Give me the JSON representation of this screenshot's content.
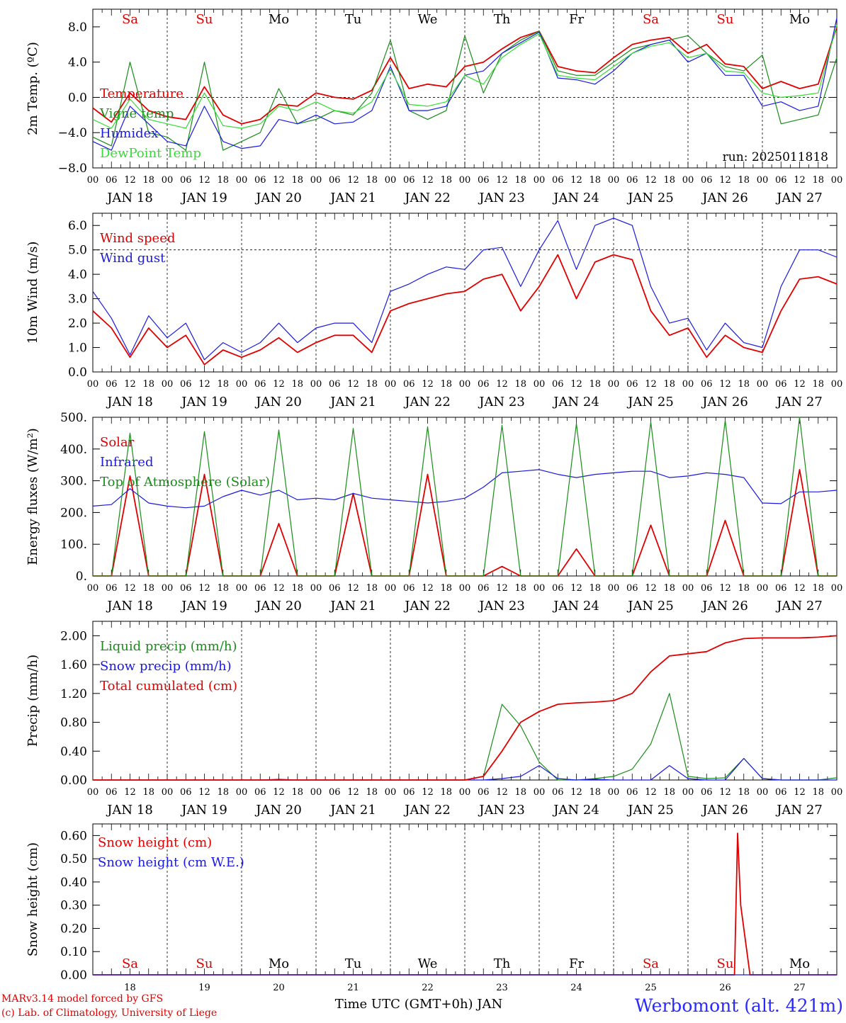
{
  "days": [
    "JAN 18",
    "JAN 19",
    "JAN 20",
    "JAN 21",
    "JAN 22",
    "JAN 23",
    "JAN 24",
    "JAN 25",
    "JAN 26",
    "JAN 27"
  ],
  "weekdays": [
    "Sa",
    "Su",
    "Mo",
    "Tu",
    "We",
    "Th",
    "Fr",
    "Sa",
    "Su",
    "Mo"
  ],
  "weekend_color": "#e00000",
  "weekday_color": "#000000",
  "hour_ticks": [
    "00",
    "06",
    "12",
    "18"
  ],
  "hour_end": "00",
  "bottom_day_numbers": [
    "18",
    "19",
    "20",
    "21",
    "22",
    "23",
    "24",
    "25",
    "26",
    "27"
  ],
  "xlabel": "Time UTC (GMT+0h) JAN",
  "footer": {
    "model": "MARv3.14 model forced by GFS",
    "copyright": "(c) Lab. of Climatology, University of Liege",
    "station": "Werbomont (alt. 421m)"
  },
  "chart_data": [
    {
      "type": "line",
      "ylabel": "2m Temp. (ºC)",
      "ylim": [
        -8,
        10
      ],
      "yticks": [
        -8,
        -4,
        0,
        4,
        8
      ],
      "ytick_labels": [
        "−8.0",
        "−4.0",
        "0.0",
        "4.0",
        "8.0"
      ],
      "ref_line": 0,
      "annotation": "run: 2025011818",
      "x_hours": [
        0,
        6,
        12,
        18,
        24,
        30,
        36,
        42,
        48,
        54,
        60,
        66,
        72,
        78,
        84,
        90,
        96,
        102,
        108,
        114,
        120,
        126,
        132,
        138,
        144,
        150,
        156,
        162,
        168,
        174,
        180,
        186,
        192,
        198,
        204,
        210,
        216,
        222,
        228,
        234,
        240
      ],
      "series": [
        {
          "name": "Temperature",
          "color": "#e00000",
          "values": [
            -1.2,
            -2.8,
            0.5,
            -1.5,
            -2.2,
            -2.5,
            1.2,
            -2.0,
            -3.0,
            -2.5,
            -0.8,
            -1.0,
            0.5,
            0.0,
            -0.2,
            0.8,
            4.5,
            1.0,
            1.5,
            1.2,
            3.5,
            4.0,
            5.5,
            6.8,
            7.5,
            3.5,
            3.0,
            2.8,
            4.5,
            6.0,
            6.5,
            6.8,
            5.0,
            6.0,
            3.8,
            3.5,
            1.0,
            1.8,
            1.0,
            1.5,
            8.0
          ]
        },
        {
          "name": "Vigne temp",
          "color": "#1a8c1a",
          "values": [
            -4.5,
            -5.5,
            4.0,
            -4.0,
            -4.5,
            -6.0,
            4.0,
            -6.0,
            -5.0,
            -4.0,
            1.0,
            -3.0,
            -2.5,
            -1.5,
            -2.0,
            0.5,
            6.5,
            -1.5,
            -2.5,
            -1.5,
            7.0,
            0.5,
            5.0,
            6.5,
            7.5,
            3.0,
            2.5,
            2.5,
            4.0,
            5.5,
            6.0,
            6.5,
            7.0,
            5.0,
            3.5,
            3.0,
            4.8,
            -3.0,
            -2.5,
            -2.0,
            4.5
          ]
        },
        {
          "name": "Humidex",
          "color": "#1a1ae0",
          "values": [
            -5.0,
            -6.0,
            -1.0,
            -3.0,
            -5.0,
            -5.5,
            -1.0,
            -5.0,
            -5.8,
            -5.5,
            -2.5,
            -3.0,
            -2.0,
            -3.0,
            -2.8,
            -1.5,
            3.5,
            -1.5,
            -1.5,
            -1.0,
            2.5,
            3.0,
            5.0,
            6.2,
            7.4,
            2.2,
            2.0,
            1.5,
            3.0,
            5.0,
            6.0,
            6.5,
            4.0,
            5.0,
            2.5,
            2.5,
            -1.0,
            -0.5,
            -1.5,
            -1.0,
            9.0
          ]
        },
        {
          "name": "DewPoint Temp",
          "color": "#33dd33",
          "values": [
            -2.5,
            -3.5,
            -0.2,
            -2.5,
            -3.0,
            -3.5,
            0.5,
            -3.2,
            -3.5,
            -3.0,
            -1.0,
            -1.5,
            -0.5,
            -1.5,
            -1.8,
            -0.5,
            3.2,
            -0.8,
            -1.0,
            -0.5,
            2.5,
            1.5,
            4.5,
            6.0,
            7.2,
            2.5,
            2.2,
            2.0,
            3.5,
            5.0,
            5.8,
            6.2,
            4.5,
            5.0,
            3.0,
            2.8,
            0.5,
            0.0,
            0.2,
            0.5,
            8.2
          ]
        }
      ]
    },
    {
      "type": "line",
      "ylabel": "10m Wind (m/s)",
      "ylim": [
        0,
        6.5
      ],
      "yticks": [
        0,
        1,
        2,
        3,
        4,
        5,
        6
      ],
      "ytick_labels": [
        "0.0",
        "1.0",
        "2.0",
        "3.0",
        "4.0",
        "5.0",
        "6.0"
      ],
      "ref_line": 5,
      "x_hours": [
        0,
        6,
        12,
        18,
        24,
        30,
        36,
        42,
        48,
        54,
        60,
        66,
        72,
        78,
        84,
        90,
        96,
        102,
        108,
        114,
        120,
        126,
        132,
        138,
        144,
        150,
        156,
        162,
        168,
        174,
        180,
        186,
        192,
        198,
        204,
        210,
        216,
        222,
        228,
        234,
        240
      ],
      "series": [
        {
          "name": "Wind speed",
          "color": "#e00000",
          "values": [
            2.5,
            1.8,
            0.6,
            1.8,
            1.0,
            1.5,
            0.3,
            0.9,
            0.6,
            0.9,
            1.4,
            0.8,
            1.2,
            1.5,
            1.5,
            0.8,
            2.5,
            2.8,
            3.0,
            3.2,
            3.3,
            3.8,
            4.0,
            2.5,
            3.5,
            4.8,
            3.0,
            4.5,
            4.8,
            4.6,
            2.5,
            1.5,
            1.8,
            0.6,
            1.5,
            1.0,
            0.8,
            2.5,
            3.8,
            3.9,
            3.6
          ]
        },
        {
          "name": "Wind gust",
          "color": "#1a1ae0",
          "values": [
            3.3,
            2.2,
            0.7,
            2.3,
            1.4,
            2.0,
            0.5,
            1.2,
            0.8,
            1.2,
            2.0,
            1.2,
            1.8,
            2.0,
            2.0,
            1.2,
            3.3,
            3.6,
            4.0,
            4.3,
            4.2,
            5.0,
            5.1,
            3.5,
            5.0,
            6.2,
            4.2,
            6.0,
            6.3,
            6.0,
            3.5,
            2.0,
            2.2,
            0.9,
            2.0,
            1.2,
            1.0,
            3.5,
            5.0,
            5.0,
            4.7
          ]
        }
      ]
    },
    {
      "type": "line",
      "ylabel": "Energy fluxes (W/m²)",
      "ylim": [
        0,
        500
      ],
      "yticks": [
        0,
        100,
        200,
        300,
        400,
        500
      ],
      "ytick_labels": [
        "0.",
        "100.",
        "200.",
        "300.",
        "400.",
        "500."
      ],
      "x_hours": [
        0,
        6,
        12,
        18,
        24,
        30,
        36,
        42,
        48,
        54,
        60,
        66,
        72,
        78,
        84,
        90,
        96,
        102,
        108,
        114,
        120,
        126,
        132,
        138,
        144,
        150,
        156,
        162,
        168,
        174,
        180,
        186,
        192,
        198,
        204,
        210,
        216,
        222,
        228,
        234,
        240
      ],
      "series": [
        {
          "name": "Solar",
          "color": "#e00000",
          "values": [
            0,
            0,
            315,
            0,
            0,
            0,
            320,
            0,
            0,
            0,
            165,
            0,
            0,
            0,
            260,
            0,
            0,
            0,
            320,
            0,
            0,
            0,
            30,
            0,
            0,
            0,
            85,
            0,
            0,
            0,
            160,
            0,
            0,
            0,
            175,
            0,
            0,
            0,
            335,
            0,
            0
          ]
        },
        {
          "name": "Infrared",
          "color": "#1a1ae0",
          "values": [
            220,
            225,
            275,
            230,
            220,
            215,
            220,
            250,
            270,
            255,
            270,
            240,
            245,
            240,
            260,
            245,
            240,
            235,
            230,
            235,
            245,
            280,
            325,
            330,
            335,
            320,
            310,
            320,
            325,
            330,
            330,
            310,
            315,
            325,
            320,
            310,
            230,
            228,
            265,
            265,
            270
          ]
        },
        {
          "name": "Top of Atmosphere (Solar)",
          "color": "#1a8c1a",
          "values": [
            0,
            0,
            450,
            0,
            0,
            0,
            455,
            0,
            0,
            0,
            460,
            0,
            0,
            0,
            465,
            0,
            0,
            0,
            470,
            0,
            0,
            0,
            475,
            0,
            0,
            0,
            480,
            0,
            0,
            0,
            485,
            0,
            0,
            0,
            490,
            0,
            0,
            0,
            500,
            0,
            0
          ]
        }
      ]
    },
    {
      "type": "line",
      "ylabel": "Precip (mm/h)",
      "ylim": [
        0,
        2.2
      ],
      "yticks": [
        0,
        0.4,
        0.8,
        1.2,
        1.6,
        2.0
      ],
      "ytick_labels": [
        "0.00",
        "0.40",
        "0.80",
        "1.20",
        "1.60",
        "2.00"
      ],
      "x_hours": [
        0,
        6,
        12,
        18,
        24,
        30,
        36,
        42,
        48,
        54,
        60,
        66,
        72,
        78,
        84,
        90,
        96,
        102,
        108,
        114,
        120,
        126,
        132,
        138,
        144,
        150,
        156,
        162,
        168,
        174,
        180,
        186,
        192,
        198,
        204,
        210,
        216,
        222,
        228,
        234,
        240
      ],
      "series": [
        {
          "name": "Liquid precip (mm/h)",
          "color": "#1a8c1a",
          "values": [
            0,
            0,
            0,
            0,
            0,
            0,
            0,
            0,
            0,
            0,
            0,
            0,
            0,
            0,
            0,
            0,
            0,
            0,
            0,
            0,
            0,
            0.05,
            1.05,
            0.75,
            0.25,
            0,
            0,
            0.02,
            0.05,
            0.15,
            0.5,
            1.2,
            0.05,
            0.02,
            0.03,
            0.3,
            0.02,
            0,
            0,
            0,
            0.03
          ]
        },
        {
          "name": "Snow precip (mm/h)",
          "color": "#1a1ae0",
          "values": [
            0,
            0,
            0,
            0,
            0,
            0,
            0,
            0,
            0,
            0,
            0.01,
            0,
            0,
            0,
            0,
            0,
            0,
            0,
            0,
            0,
            0,
            0,
            0.02,
            0.05,
            0.2,
            0.02,
            0,
            0.01,
            0,
            0,
            0,
            0.2,
            0.02,
            0,
            0,
            0.3,
            0.02,
            0,
            0,
            0,
            0
          ]
        },
        {
          "name": "Total cumulated (cm)",
          "color": "#e00000",
          "values": [
            0,
            0,
            0,
            0,
            0,
            0,
            0,
            0,
            0,
            0,
            0,
            0,
            0,
            0,
            0,
            0,
            0,
            0,
            0,
            0,
            0,
            0.05,
            0.4,
            0.8,
            0.95,
            1.05,
            1.07,
            1.08,
            1.1,
            1.2,
            1.5,
            1.72,
            1.75,
            1.78,
            1.9,
            1.96,
            1.97,
            1.97,
            1.97,
            1.98,
            2.0
          ]
        }
      ]
    },
    {
      "type": "line",
      "ylabel": "Snow height (cm)",
      "ylim": [
        0,
        0.65
      ],
      "yticks": [
        0,
        0.1,
        0.2,
        0.3,
        0.4,
        0.5,
        0.6
      ],
      "ytick_labels": [
        "0.00",
        "0.10",
        "0.20",
        "0.30",
        "0.40",
        "0.50",
        "0.60"
      ],
      "x_hours": [
        0,
        204,
        207,
        208,
        209,
        212,
        240
      ],
      "series": [
        {
          "name": "Snow height (cm)",
          "color": "#e00000",
          "values": [
            0,
            0,
            0,
            0.61,
            0.3,
            0,
            0
          ]
        },
        {
          "name": "Snow height (cm W.E.)",
          "color": "#1a1ae0",
          "values": [
            0,
            0,
            0,
            0,
            0,
            0,
            0
          ]
        }
      ]
    }
  ]
}
